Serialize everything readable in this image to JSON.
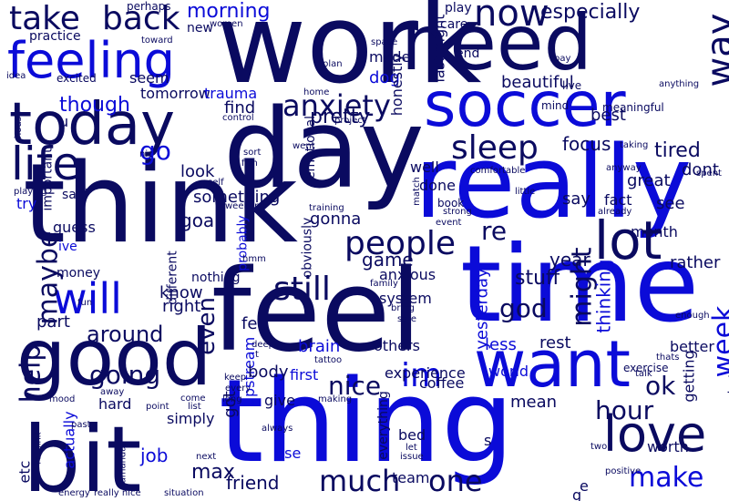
{
  "palette": {
    "navy": "#0a0a60",
    "blue": "#0b0bd8"
  },
  "words": [
    {
      "text": "work",
      "tone": "navy"
    },
    {
      "text": "need",
      "tone": "navy"
    },
    {
      "text": "feeling",
      "tone": "blue"
    },
    {
      "text": "take",
      "tone": "navy"
    },
    {
      "text": "back",
      "tone": "navy"
    },
    {
      "text": "morning",
      "tone": "blue"
    },
    {
      "text": "pretty",
      "tone": "navy"
    },
    {
      "text": "now",
      "tone": "navy"
    },
    {
      "text": "especially",
      "tone": "navy"
    },
    {
      "text": "way",
      "tone": "navy"
    },
    {
      "text": "today",
      "tone": "navy"
    },
    {
      "text": "soccer",
      "tone": "blue"
    },
    {
      "text": "day",
      "tone": "navy"
    },
    {
      "text": "really",
      "tone": "blue"
    },
    {
      "text": "think",
      "tone": "navy"
    },
    {
      "text": "time",
      "tone": "blue"
    },
    {
      "text": "feel",
      "tone": "navy"
    },
    {
      "text": "thing",
      "tone": "blue"
    },
    {
      "text": "want",
      "tone": "blue"
    },
    {
      "text": "good",
      "tone": "navy"
    },
    {
      "text": "bit",
      "tone": "navy"
    },
    {
      "text": "love",
      "tone": "navy"
    },
    {
      "text": "lot",
      "tone": "navy"
    },
    {
      "text": "life",
      "tone": "navy"
    },
    {
      "text": "anxiety",
      "tone": "navy"
    },
    {
      "text": "sleep",
      "tone": "navy"
    },
    {
      "text": "people",
      "tone": "navy"
    },
    {
      "text": "still",
      "tone": "navy"
    },
    {
      "text": "will",
      "tone": "blue"
    },
    {
      "text": "maybe",
      "tone": "navy"
    },
    {
      "text": "help",
      "tone": "navy"
    },
    {
      "text": "going",
      "tone": "navy"
    },
    {
      "text": "much",
      "tone": "navy"
    },
    {
      "text": "one",
      "tone": "navy"
    },
    {
      "text": "make",
      "tone": "blue"
    },
    {
      "text": "hour",
      "tone": "navy"
    },
    {
      "text": "week",
      "tone": "blue"
    },
    {
      "text": "im",
      "tone": "blue"
    },
    {
      "text": "god",
      "tone": "navy"
    },
    {
      "text": "might",
      "tone": "navy"
    },
    {
      "text": "go",
      "tone": "blue"
    },
    {
      "text": "though",
      "tone": "blue"
    },
    {
      "text": "seem",
      "tone": "navy"
    },
    {
      "text": "tomorrow",
      "tone": "navy"
    },
    {
      "text": "trauma",
      "tone": "blue"
    },
    {
      "text": "find",
      "tone": "navy"
    },
    {
      "text": "goal",
      "tone": "navy"
    },
    {
      "text": "look",
      "tone": "navy"
    },
    {
      "text": "something",
      "tone": "navy"
    },
    {
      "text": "gonna",
      "tone": "navy"
    },
    {
      "text": "focus",
      "tone": "navy"
    },
    {
      "text": "tired",
      "tone": "navy"
    },
    {
      "text": "dont",
      "tone": "navy"
    },
    {
      "text": "re",
      "tone": "navy"
    },
    {
      "text": "stuff",
      "tone": "navy"
    },
    {
      "text": "year",
      "tone": "navy"
    },
    {
      "text": "rather",
      "tone": "navy"
    },
    {
      "text": "even",
      "tone": "navy"
    },
    {
      "text": "around",
      "tone": "navy"
    },
    {
      "text": "nice",
      "tone": "navy"
    },
    {
      "text": "ok",
      "tone": "navy"
    },
    {
      "text": "upstream",
      "tone": "blue"
    },
    {
      "text": "body",
      "tone": "navy"
    },
    {
      "text": "mean",
      "tone": "navy"
    },
    {
      "text": "less",
      "tone": "blue"
    },
    {
      "text": "rest",
      "tone": "navy"
    },
    {
      "text": "job",
      "tone": "blue"
    },
    {
      "text": "max",
      "tone": "navy"
    },
    {
      "text": "friend",
      "tone": "navy"
    },
    {
      "text": "got",
      "tone": "navy"
    },
    {
      "text": "part",
      "tone": "navy"
    },
    {
      "text": "know",
      "tone": "navy"
    },
    {
      "text": "right",
      "tone": "navy"
    },
    {
      "text": "game",
      "tone": "navy"
    },
    {
      "text": "anxious",
      "tone": "navy"
    },
    {
      "text": "system",
      "tone": "navy"
    },
    {
      "text": "others",
      "tone": "navy"
    },
    {
      "text": "brain",
      "tone": "blue"
    },
    {
      "text": "felt",
      "tone": "navy"
    },
    {
      "text": "first",
      "tone": "blue"
    },
    {
      "text": "give",
      "tone": "navy"
    },
    {
      "text": "use",
      "tone": "blue"
    },
    {
      "text": "experience",
      "tone": "navy"
    },
    {
      "text": "coffee",
      "tone": "navy"
    },
    {
      "text": "bed",
      "tone": "navy"
    },
    {
      "text": "team",
      "tone": "navy"
    },
    {
      "text": "better",
      "tone": "navy"
    },
    {
      "text": "getting",
      "tone": "navy"
    },
    {
      "text": "world",
      "tone": "blue"
    },
    {
      "text": "thinking",
      "tone": "blue"
    },
    {
      "text": "month",
      "tone": "navy"
    },
    {
      "text": "see",
      "tone": "navy"
    },
    {
      "text": "fact",
      "tone": "navy"
    },
    {
      "text": "great",
      "tone": "navy"
    },
    {
      "text": "say",
      "tone": "navy"
    },
    {
      "text": "best",
      "tone": "navy"
    },
    {
      "text": "dog",
      "tone": "blue"
    },
    {
      "text": "made",
      "tone": "navy"
    },
    {
      "text": "beautiful",
      "tone": "navy"
    },
    {
      "text": "end",
      "tone": "navy"
    },
    {
      "text": "done",
      "tone": "navy"
    },
    {
      "text": "well",
      "tone": "navy"
    },
    {
      "text": "guess",
      "tone": "navy"
    },
    {
      "text": "ive",
      "tone": "blue"
    },
    {
      "text": "try",
      "tone": "blue"
    },
    {
      "text": "said",
      "tone": "navy"
    },
    {
      "text": "u",
      "tone": "navy"
    },
    {
      "text": "practice",
      "tone": "navy"
    },
    {
      "text": "new",
      "tone": "navy"
    },
    {
      "text": "money",
      "tone": "navy"
    },
    {
      "text": "actually",
      "tone": "blue"
    },
    {
      "text": "hard",
      "tone": "navy"
    },
    {
      "text": "simply",
      "tone": "navy"
    },
    {
      "text": "etc",
      "tone": "navy"
    },
    {
      "text": "worth",
      "tone": "navy"
    },
    {
      "text": "nothing",
      "tone": "navy"
    },
    {
      "text": "different",
      "tone": "navy"
    },
    {
      "text": "yesterday",
      "tone": "blue"
    },
    {
      "text": "everything",
      "tone": "navy"
    },
    {
      "text": "e",
      "tone": "navy"
    },
    {
      "text": "g",
      "tone": "navy"
    },
    {
      "text": "s",
      "tone": "navy"
    },
    {
      "text": "bottom",
      "tone": "navy"
    },
    {
      "text": "surgery",
      "tone": "navy"
    },
    {
      "text": "last night",
      "tone": "navy"
    },
    {
      "text": "honestly",
      "tone": "navy"
    },
    {
      "text": "important",
      "tone": "navy"
    },
    {
      "text": "probably",
      "tone": "blue"
    },
    {
      "text": "obviously",
      "tone": "navy"
    },
    {
      "text": "emotional",
      "tone": "navy"
    },
    {
      "text": "play",
      "tone": "navy"
    },
    {
      "text": "care",
      "tone": "navy"
    },
    {
      "text": "perhaps",
      "tone": "navy"
    },
    {
      "text": "toward",
      "tone": "navy"
    },
    {
      "text": "women",
      "tone": "navy"
    },
    {
      "text": "idea",
      "tone": "navy"
    },
    {
      "text": "excited",
      "tone": "navy"
    },
    {
      "text": "plan",
      "tone": "navy"
    },
    {
      "text": "space",
      "tone": "navy"
    },
    {
      "text": "pay",
      "tone": "navy"
    },
    {
      "text": "live",
      "tone": "navy"
    },
    {
      "text": "meaningful",
      "tone": "navy"
    },
    {
      "text": "anything",
      "tone": "navy"
    },
    {
      "text": "mind",
      "tone": "navy"
    },
    {
      "text": "home",
      "tone": "navy"
    },
    {
      "text": "project",
      "tone": "navy"
    },
    {
      "text": "control",
      "tone": "navy"
    },
    {
      "text": "house",
      "tone": "navy"
    },
    {
      "text": "sort",
      "tone": "navy"
    },
    {
      "text": "fish",
      "tone": "navy"
    },
    {
      "text": "went",
      "tone": "navy"
    },
    {
      "text": "nic",
      "tone": "navy"
    },
    {
      "text": "self",
      "tone": "navy"
    },
    {
      "text": "weekend",
      "tone": "navy"
    },
    {
      "text": "playing",
      "tone": "navy"
    },
    {
      "text": "training",
      "tone": "navy"
    },
    {
      "text": "taking",
      "tone": "navy"
    },
    {
      "text": "anyway",
      "tone": "navy"
    },
    {
      "text": "comfortable",
      "tone": "navy"
    },
    {
      "text": "spent",
      "tone": "navy"
    },
    {
      "text": "season",
      "tone": "navy"
    },
    {
      "text": "little",
      "tone": "navy"
    },
    {
      "text": "book",
      "tone": "navy"
    },
    {
      "text": "strong",
      "tone": "navy"
    },
    {
      "text": "event",
      "tone": "navy"
    },
    {
      "text": "already",
      "tone": "navy"
    },
    {
      "text": "match",
      "tone": "navy"
    },
    {
      "text": "hmm",
      "tone": "navy"
    },
    {
      "text": "fun",
      "tone": "navy"
    },
    {
      "text": "family",
      "tone": "navy"
    },
    {
      "text": "bring",
      "tone": "navy"
    },
    {
      "text": "safe",
      "tone": "navy"
    },
    {
      "text": "deep",
      "tone": "navy"
    },
    {
      "text": "t",
      "tone": "navy"
    },
    {
      "text": "tattoo",
      "tone": "navy"
    },
    {
      "text": "keep",
      "tone": "navy"
    },
    {
      "text": "every",
      "tone": "navy"
    },
    {
      "text": "making",
      "tone": "navy"
    },
    {
      "text": "thats",
      "tone": "navy"
    },
    {
      "text": "exercise",
      "tone": "navy"
    },
    {
      "text": "talk",
      "tone": "navy"
    },
    {
      "text": "enough",
      "tone": "navy"
    },
    {
      "text": "mood",
      "tone": "navy"
    },
    {
      "text": "come",
      "tone": "navy"
    },
    {
      "text": "long",
      "tone": "navy"
    },
    {
      "text": "away",
      "tone": "navy"
    },
    {
      "text": "past",
      "tone": "navy"
    },
    {
      "text": "point",
      "tone": "navy"
    },
    {
      "text": "list",
      "tone": "navy"
    },
    {
      "text": "always",
      "tone": "navy"
    },
    {
      "text": "rethink",
      "tone": "navy"
    },
    {
      "text": "amanda",
      "tone": "navy"
    },
    {
      "text": "next",
      "tone": "navy"
    },
    {
      "text": "let",
      "tone": "navy"
    },
    {
      "text": "issue",
      "tone": "navy"
    },
    {
      "text": "positive",
      "tone": "navy"
    },
    {
      "text": "two",
      "tone": "navy"
    },
    {
      "text": "energy",
      "tone": "navy"
    },
    {
      "text": "really nice",
      "tone": "navy"
    },
    {
      "text": "situation",
      "tone": "navy"
    }
  ]
}
